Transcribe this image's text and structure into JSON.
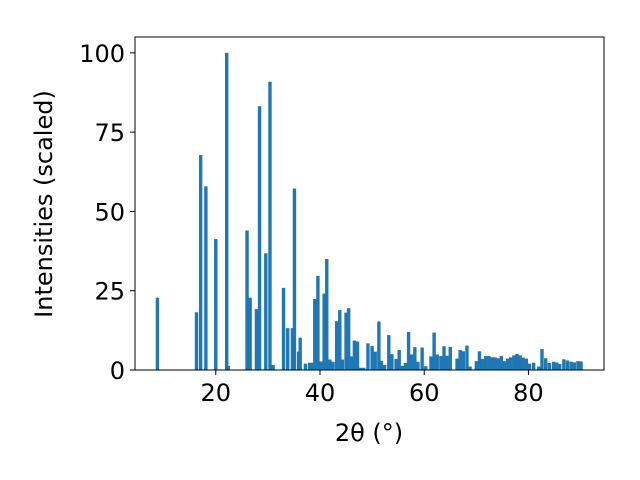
{
  "chart_data": {
    "type": "bar",
    "title": "",
    "xlabel": "2θ (°)",
    "ylabel": "Intensities (scaled)",
    "xlim": [
      4.5,
      94.5
    ],
    "ylim": [
      0,
      105
    ],
    "xticks": [
      "20",
      "40",
      "60",
      "80"
    ],
    "yticks": [
      "0",
      "25",
      "50",
      "75",
      "100"
    ],
    "bar_color": "#1f77b4",
    "grid": false,
    "series": [
      {
        "x": [
          8.8,
          16.3,
          17.1,
          18.1,
          20.0,
          22.1,
          22.4,
          26.0,
          26.6,
          27.8,
          28.4,
          29.6,
          30.4,
          31.0,
          33.0,
          33.8,
          34.7,
          35.1,
          35.9,
          36.2,
          37.2,
          38.0,
          38.6,
          39.0,
          39.6,
          40.2,
          40.8,
          41.3,
          41.9,
          42.5,
          43.2,
          43.8,
          44.3,
          45.0,
          45.5,
          46.1,
          46.6,
          47.2,
          47.8,
          48.4,
          49.2,
          50.0,
          50.6,
          51.3,
          51.8,
          52.4,
          53.2,
          53.8,
          54.6,
          55.2,
          55.8,
          56.4,
          57.0,
          57.6,
          58.2,
          58.8,
          59.6,
          60.3,
          61.3,
          61.9,
          62.5,
          63.2,
          63.8,
          64.4,
          65.0,
          66.3,
          66.9,
          67.5,
          68.2,
          68.8,
          70.0,
          70.6,
          71.2,
          71.8,
          72.4,
          73.0,
          73.6,
          74.2,
          74.8,
          75.4,
          76.0,
          76.6,
          77.2,
          77.8,
          78.4,
          79.0,
          79.6,
          80.2,
          81.0,
          82.0,
          82.6,
          83.3,
          84.0,
          84.8,
          85.4,
          86.0,
          86.8,
          87.5,
          88.2,
          88.8,
          89.5,
          90.1
        ],
        "values": [
          22.8,
          18.2,
          67.8,
          57.9,
          41.3,
          100.0,
          1.3,
          44.0,
          22.8,
          19.2,
          83.2,
          36.8,
          90.9,
          1.6,
          25.9,
          13.2,
          13.2,
          57.2,
          5.8,
          10.2,
          2.0,
          2.3,
          2.3,
          22.4,
          29.7,
          2.7,
          24.1,
          35.0,
          3.3,
          2.6,
          15.4,
          18.9,
          3.3,
          18.1,
          19.5,
          4.3,
          9.3,
          9.0,
          0.7,
          0.7,
          8.4,
          7.6,
          5.8,
          15.3,
          2.9,
          1.6,
          11.0,
          5.0,
          3.5,
          6.3,
          1.3,
          2.2,
          12.0,
          4.9,
          7.2,
          2.6,
          7.1,
          1.2,
          4.3,
          11.8,
          4.9,
          4.4,
          7.5,
          4.5,
          7.3,
          3.6,
          6.3,
          5.9,
          7.7,
          1.1,
          2.8,
          5.9,
          3.5,
          4.4,
          4.4,
          4.0,
          4.0,
          3.7,
          4.4,
          2.8,
          3.6,
          4.0,
          4.6,
          5.1,
          4.6,
          3.9,
          3.6,
          2.0,
          2.3,
          1.1,
          6.6,
          3.7,
          2.2,
          2.6,
          2.4,
          1.9,
          3.4,
          3.0,
          2.6,
          2.4,
          2.8,
          2.7
        ]
      }
    ]
  }
}
